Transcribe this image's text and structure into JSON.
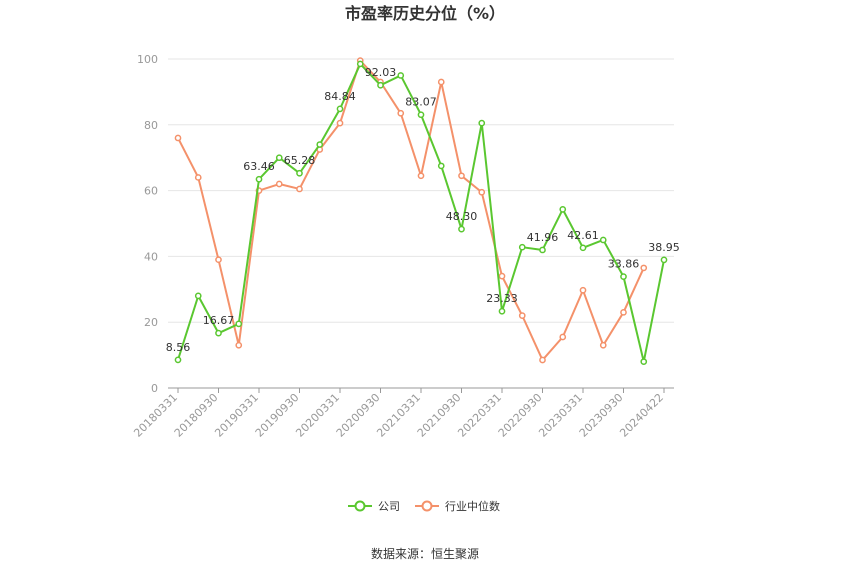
{
  "chart_data": {
    "type": "line",
    "title": "市盈率历史分位（%）",
    "source": "数据来源：恒生聚源",
    "ylim": [
      0,
      100
    ],
    "yticks": [
      "0",
      "20",
      "40",
      "60",
      "80",
      "100"
    ],
    "xtick_labels": [
      "20180331",
      "20180930",
      "20190331",
      "20190930",
      "20200331",
      "20200930",
      "20210331",
      "20210930",
      "20220331",
      "20220930",
      "20230331",
      "20230930",
      "20240422"
    ],
    "grid": true,
    "legend_position": "bottom",
    "colors": {
      "company": "#5ac730",
      "industry": "#f4916a"
    },
    "series": [
      {
        "name": "公司",
        "values": [
          8.56,
          28,
          16.67,
          19.5,
          63.46,
          70,
          65.28,
          74,
          84.84,
          98.5,
          92.03,
          95,
          83.07,
          67.5,
          48.3,
          80.5,
          23.33,
          42.8,
          41.96,
          54.3,
          42.61,
          45,
          33.86,
          8,
          38.95
        ],
        "labels": [
          "8.56",
          "",
          "16.67",
          "",
          "63.46",
          "",
          "65.28",
          "",
          "84.84",
          "",
          "92.03",
          "",
          "83.07",
          "",
          "48.30",
          "",
          "23.33",
          "",
          "41.96",
          "",
          "42.61",
          "",
          "33.86",
          "",
          "38.95"
        ]
      },
      {
        "name": "行业中位数",
        "values": [
          76,
          64,
          39,
          13,
          60,
          62,
          60.5,
          72.5,
          80.5,
          99.5,
          93,
          83.5,
          64.5,
          93,
          64.5,
          59.5,
          34,
          22,
          8.5,
          15.5,
          29.7,
          13,
          23,
          36.5,
          null
        ]
      }
    ]
  }
}
